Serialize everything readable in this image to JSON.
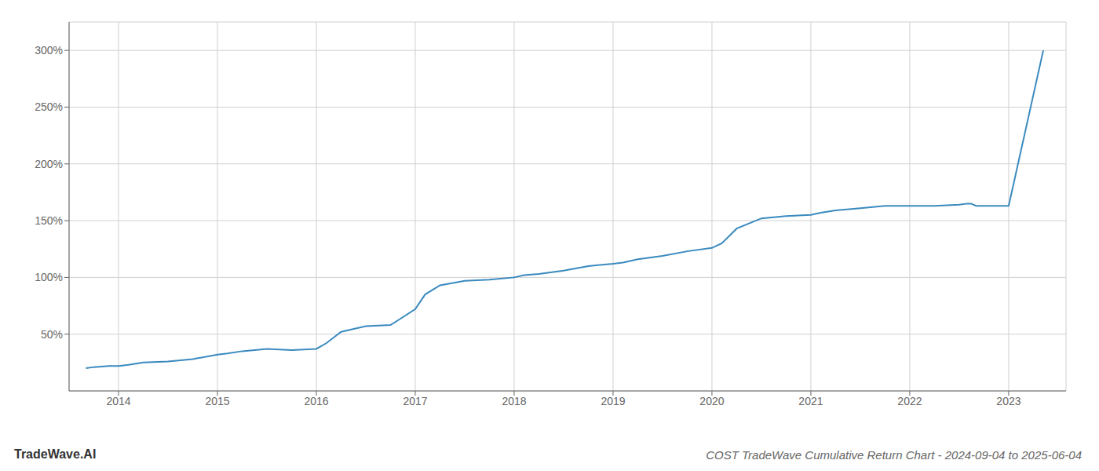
{
  "chart_data": {
    "type": "line",
    "title": "COST TradeWave Cumulative Return Chart - 2024-09-04 to 2025-06-04",
    "annotations": [
      "TradeWave.AI"
    ],
    "color": "#3a8abf",
    "grid": true,
    "x": [
      2013.67,
      2013.75,
      2013.9,
      2014.0,
      2014.1,
      2014.25,
      2014.5,
      2014.75,
      2015.0,
      2015.1,
      2015.25,
      2015.5,
      2015.75,
      2016.0,
      2016.1,
      2016.25,
      2016.5,
      2016.75,
      2017.0,
      2017.1,
      2017.25,
      2017.5,
      2017.75,
      2018.0,
      2018.1,
      2018.25,
      2018.5,
      2018.75,
      2019.0,
      2019.1,
      2019.25,
      2019.5,
      2019.75,
      2020.0,
      2020.1,
      2020.25,
      2020.5,
      2020.75,
      2021.0,
      2021.1,
      2021.25,
      2021.5,
      2021.75,
      2022.0,
      2022.1,
      2022.25,
      2022.5,
      2022.58,
      2022.62,
      2022.67,
      2022.75,
      2023.0,
      2023.35
    ],
    "values": [
      20,
      21,
      22,
      22,
      23,
      25,
      26,
      28,
      32,
      33,
      35,
      37,
      36,
      37,
      42,
      52,
      57,
      58,
      72,
      85,
      93,
      97,
      98,
      100,
      102,
      103,
      106,
      110,
      112,
      113,
      116,
      119,
      123,
      126,
      130,
      143,
      152,
      154,
      155,
      157,
      159,
      161,
      163,
      163,
      163,
      163,
      164,
      165,
      165,
      163,
      163,
      163,
      300
    ],
    "xlim": [
      2013.5,
      2023.58
    ],
    "xticks": [
      2014,
      2015,
      2016,
      2017,
      2018,
      2019,
      2020,
      2021,
      2022,
      2023
    ],
    "ylim": [
      0,
      325
    ],
    "yticks": [
      {
        "value": 50,
        "label": "50%"
      },
      {
        "value": 100,
        "label": "100%"
      },
      {
        "value": 150,
        "label": "150%"
      },
      {
        "value": 200,
        "label": "200%"
      },
      {
        "value": 250,
        "label": "250%"
      },
      {
        "value": 300,
        "label": "300%"
      }
    ]
  }
}
